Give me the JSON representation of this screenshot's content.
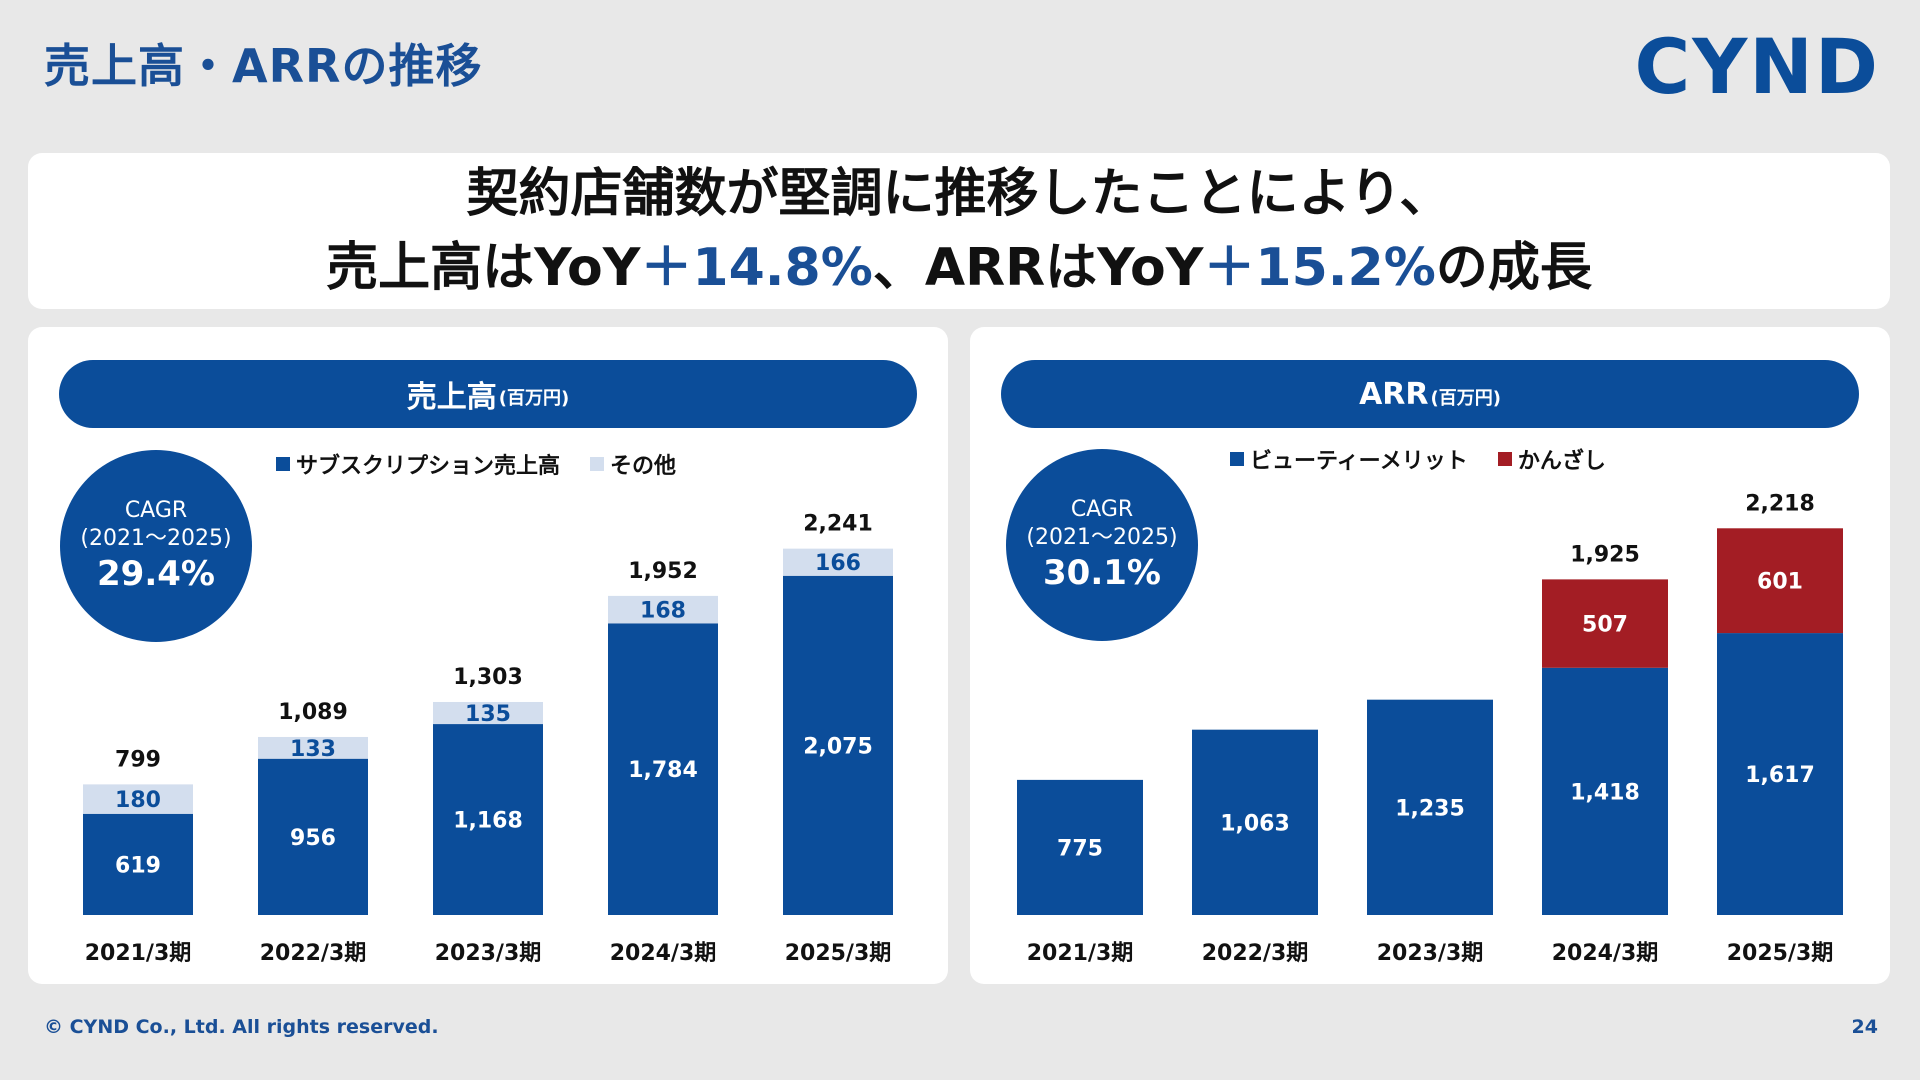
{
  "page": {
    "title": "売上高・ARRの推移",
    "logo": "CYND",
    "headline_line1": "契約店舗数が堅調に推移したことにより、",
    "headline_line2_a": "売上高はYoY",
    "headline_line2_b": "＋14.8%",
    "headline_line2_c": "、ARRはYoY",
    "headline_line2_d": "＋15.2%",
    "headline_line2_e": "の成長",
    "footer_copyright": "© CYND Co., Ltd. All rights reserved.",
    "page_number": "24"
  },
  "panels": {
    "sales": {
      "title": "売上高",
      "unit": "(百万円)",
      "cagr_label": "CAGR",
      "cagr_period": "(2021～2025)",
      "cagr_value": "29.4%"
    },
    "arr": {
      "title": "ARR",
      "unit": "(百万円)",
      "cagr_label": "CAGR",
      "cagr_period": "(2021～2025)",
      "cagr_value": "30.1%"
    }
  },
  "colors": {
    "primary_blue": "#0b4d9a",
    "light_blue": "#d3deee",
    "dark_red": "#a31d24",
    "title_blue": "#1a4f96"
  },
  "chart_data": [
    {
      "type": "bar",
      "stacked": true,
      "categories": [
        "2021/3期",
        "2022/3期",
        "2023/3期",
        "2024/3期",
        "2025/3期"
      ],
      "series": [
        {
          "name": "サブスクリプション売上高",
          "values": [
            619,
            956,
            1168,
            1784,
            2075
          ],
          "color": "#0b4d9a"
        },
        {
          "name": "その他",
          "values": [
            180,
            133,
            135,
            168,
            166
          ],
          "color": "#d3deee"
        }
      ],
      "totals": [
        "799",
        "1,089",
        "1,303",
        "1,952",
        "2,241"
      ],
      "value_labels": [
        [
          "619",
          "956",
          "1,168",
          "1,784",
          "2,075"
        ],
        [
          "180",
          "133",
          "135",
          "168",
          "166"
        ]
      ],
      "ylim": [
        0,
        2300
      ],
      "legend": "top"
    },
    {
      "type": "bar",
      "stacked": true,
      "categories": [
        "2021/3期",
        "2022/3期",
        "2023/3期",
        "2024/3期",
        "2025/3期"
      ],
      "series": [
        {
          "name": "ビューティーメリット",
          "values": [
            775,
            1063,
            1235,
            1418,
            1617
          ],
          "color": "#0b4d9a"
        },
        {
          "name": "かんざし",
          "values": [
            0,
            0,
            0,
            507,
            601
          ],
          "color": "#a31d24"
        }
      ],
      "totals": [
        "",
        "",
        "",
        "1,925",
        "2,218"
      ],
      "value_labels": [
        [
          "775",
          "1,063",
          "1,235",
          "1,418",
          "1,617"
        ],
        [
          "",
          "",
          "",
          "507",
          "601"
        ]
      ],
      "ylim": [
        0,
        2300
      ],
      "legend": "top"
    }
  ]
}
